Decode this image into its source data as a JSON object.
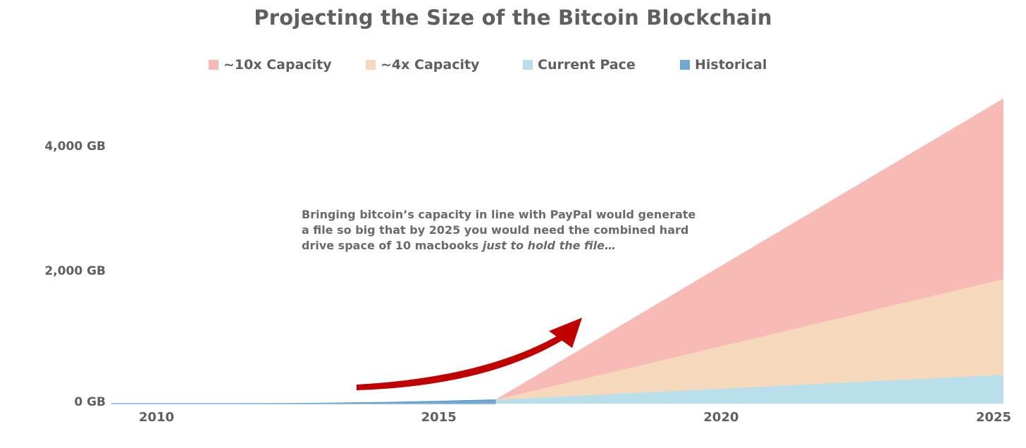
{
  "chart_data": {
    "type": "area",
    "title": "Projecting the Size of the Bitcoin Blockchain",
    "xlabel": "",
    "ylabel": "",
    "x_ticks": [
      "2010",
      "2015",
      "2020",
      "2025"
    ],
    "y_ticks": [
      "0 GB",
      "2,000 GB",
      "4,000 GB"
    ],
    "y_tick_values": [
      0,
      2000,
      4000
    ],
    "xlim": [
      2009.2,
      2025.1
    ],
    "ylim": [
      0,
      4900
    ],
    "legend_position": "top",
    "grid": false,
    "series": [
      {
        "name": "Historical",
        "color": "#6fa8d3",
        "x": [
          2009.2,
          2011,
          2012,
          2013,
          2014,
          2015,
          2015.5,
          2016.0
        ],
        "values": [
          0,
          0.5,
          2,
          8,
          20,
          38,
          50,
          60
        ]
      },
      {
        "name": "Current Pace",
        "color": "#b9e0ea",
        "x": [
          2016.0,
          2025.0
        ],
        "values": [
          60,
          460
        ]
      },
      {
        "name": "~4x Capacity",
        "color": "#f6d8bd",
        "x": [
          2016.0,
          2025.0
        ],
        "values": [
          60,
          1990
        ]
      },
      {
        "name": "~10x Capacity",
        "color": "#f8bab5",
        "x": [
          2016.0,
          2025.0
        ],
        "values": [
          60,
          4880
        ]
      }
    ],
    "legend": [
      "~10x Capacity",
      "~4x Capacity",
      "Current Pace",
      "Historical"
    ],
    "annotation": {
      "line1": "Bringing bitcoin’s capacity in line with PayPal would generate",
      "line2": "a file so big that by 2025 you would need the combined hard",
      "line3_plain": "drive space of 10 macbooks ",
      "line3_italic": "just to hold the file…",
      "arrow_color": "#c00000"
    }
  }
}
